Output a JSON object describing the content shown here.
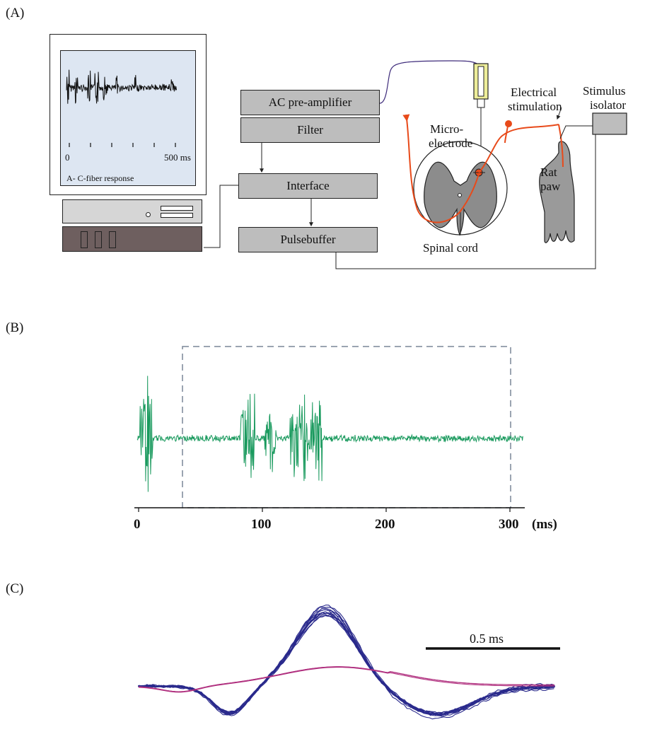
{
  "panels": {
    "a_label": "(A)",
    "b_label": "(B)",
    "c_label": "(C)"
  },
  "monitor": {
    "tick_start": "0",
    "tick_end": "500 ms",
    "caption": "A- C-fiber response"
  },
  "blocks": {
    "preamp": "AC pre-amplifier",
    "filter": "Filter",
    "interface": "Interface",
    "pulsebuffer": "Pulsebuffer"
  },
  "labels": {
    "electrical": "Electrical",
    "stimulation": "stimulation",
    "stimulus": "Stimulus",
    "isolator": "isolator",
    "micro": "Micro-",
    "electrode": "electrode",
    "rat": "Rat",
    "paw": "paw",
    "spinal_cord": "Spinal cord"
  },
  "panel_b": {
    "x_ticks": [
      "0",
      "100",
      "200",
      "300"
    ],
    "x_unit": "(ms)"
  },
  "panel_c": {
    "scale_label": "0.5 ms"
  },
  "colors": {
    "trace_green": "#1a9a5e",
    "waveform_blue": "#2a2a8c",
    "waveform_magenta": "#b0307f",
    "fiber_orange": "#e84a1a",
    "block_fill": "#bdbdbd",
    "screen_fill": "#dde6f2"
  }
}
